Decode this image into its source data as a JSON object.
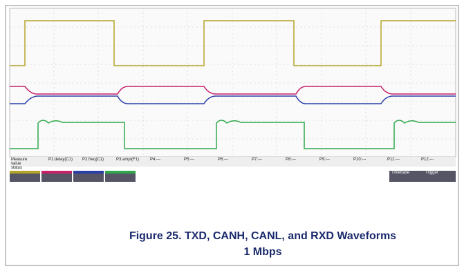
{
  "measure_bar": {
    "title": "Measure",
    "rows": [
      "value",
      "status"
    ],
    "params": [
      "P1:delay(C1)",
      "P2:freq(C1)",
      "P3:ampl(F1)",
      "P4:---",
      "P5:---",
      "P6:---",
      "P7:---",
      "P8:---",
      "P9:---",
      "P10:---",
      "P11:---",
      "P12:---"
    ]
  },
  "status_bar": {
    "timebase": "Timebase",
    "trigger": "Trigger"
  },
  "caption": {
    "line1": "Figure 25. TXD, CANH, CANL, and RXD Waveforms",
    "line2": "1 Mbps"
  }
}
